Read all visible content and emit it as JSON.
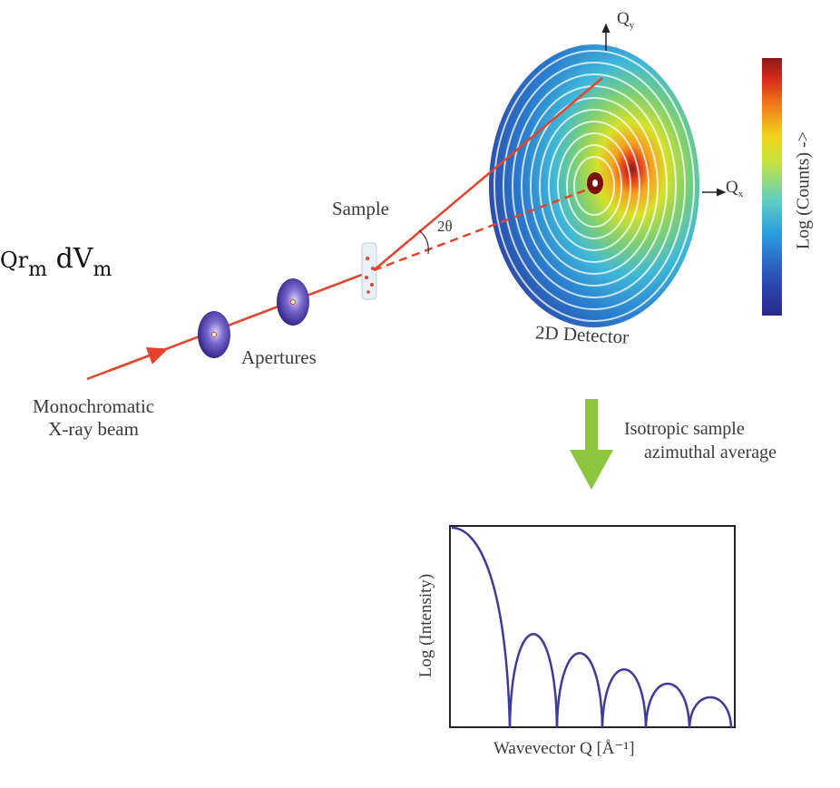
{
  "formula": {
    "fragment": "Qr",
    "sub1": "m",
    "main": "dV",
    "sub2": "m"
  },
  "labels": {
    "qy": "Q",
    "qy_sub": "y",
    "qx": "Q",
    "qx_sub": "x",
    "sample": "Sample",
    "two_theta": "2θ",
    "detector": "2D Detector",
    "apertures": "Apertures",
    "beam_line1": "Monochromatic",
    "beam_line2": "X-ray beam",
    "colorbar": "Log (Counts) ->",
    "avg_line1": "Isotropic sample",
    "avg_line2": "azimuthal average"
  },
  "colors": {
    "beam": "#e5432c",
    "aperture": "#3b2e9a",
    "curve": "#3c3c9a",
    "arrow": "#8cc63f"
  },
  "chart_data": {
    "type": "line",
    "title": "",
    "xlabel": "Wavevector Q [Å⁻¹]",
    "ylabel": "Log (Intensity)",
    "grid": false,
    "lobes": 6
  }
}
